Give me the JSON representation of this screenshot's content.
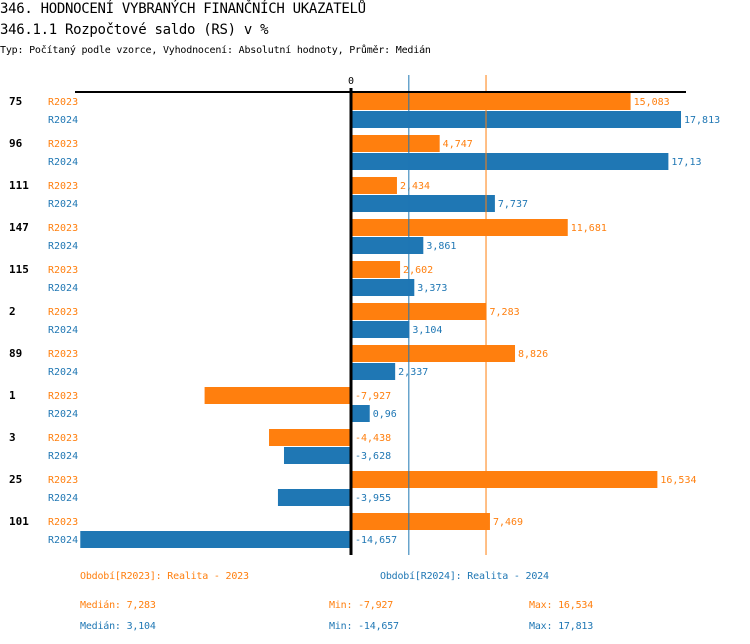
{
  "header": {
    "title": "346. HODNOCENÍ VYBRANÝCH FINANČNÍCH UKAZATELŮ",
    "subtitle": "346.1.1 Rozpočtové saldo (RS) v %",
    "info": "Typ: Počítaný podle vzorce, Vyhodnocení: Absolutní hodnoty, Průměr: Medián"
  },
  "colors": {
    "R2023": "#ff7f0e",
    "R2024": "#1f77b4",
    "axis": "#000000"
  },
  "chart_data": {
    "type": "bar",
    "orientation": "horizontal",
    "title": "346.1.1 Rozpočtové saldo (RS) v %",
    "xlabel": "",
    "ylabel": "",
    "zero_label": "0",
    "categories": [
      "75",
      "96",
      "111",
      "147",
      "115",
      "2",
      "89",
      "1",
      "3",
      "25",
      "101"
    ],
    "series": [
      {
        "name": "R2023",
        "legend": "Období[R2023]: Realita - 2023",
        "values": [
          15.083,
          4.747,
          2.434,
          11.681,
          2.602,
          7.283,
          8.826,
          -7.927,
          -4.438,
          16.534,
          7.469
        ],
        "labels": [
          "15,083",
          "4,747",
          "2,434",
          "11,681",
          "2,602",
          "7,283",
          "8,826",
          "-7,927",
          "-4,438",
          "16,534",
          "7,469"
        ],
        "median": 7.283,
        "stats": {
          "median": "Medián: 7,283",
          "min": "Min: -7,927",
          "max": "Max: 16,534"
        }
      },
      {
        "name": "R2024",
        "legend": "Období[R2024]: Realita - 2024",
        "values": [
          17.813,
          17.13,
          7.737,
          3.861,
          3.373,
          3.104,
          2.337,
          0.96,
          -3.628,
          -3.955,
          -14.657
        ],
        "labels": [
          "17,813",
          "17,13",
          "7,737",
          "3,861",
          "3,373",
          "3,104",
          "2,337",
          "0,96",
          "-3,628",
          "-3,955",
          "-14,657"
        ],
        "median": 3.104,
        "stats": {
          "median": "Medián: 3,104",
          "min": "Min: -14,657",
          "max": "Max: 17,813"
        }
      }
    ],
    "xlim": [
      -15.2,
      18.2
    ],
    "grid": false,
    "reference_lines": "median per series",
    "legend_position": "bottom"
  }
}
